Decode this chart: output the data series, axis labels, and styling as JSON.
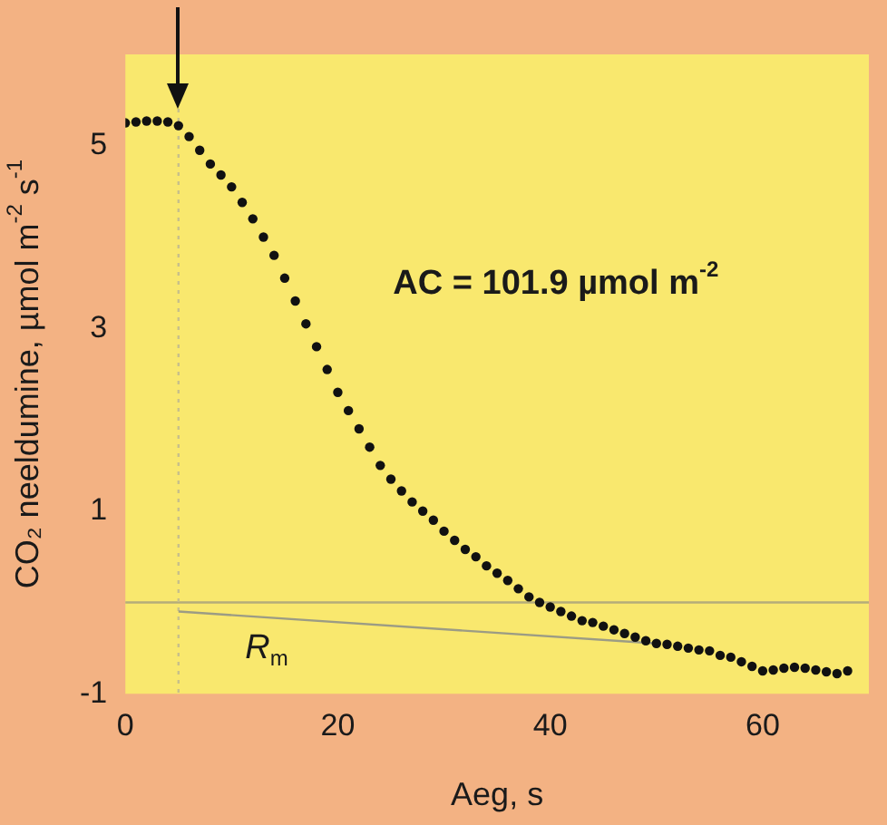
{
  "chart_data": {
    "type": "scatter",
    "xlabel": "Aeg, s",
    "ylabel": "CO₂ neeldumine, µmol m$^{-2}$ s$^{-1}$",
    "xlim": [
      0,
      70
    ],
    "ylim": [
      -1,
      6
    ],
    "xticks": [
      0,
      20,
      40,
      60
    ],
    "yticks": [
      -1,
      1,
      3,
      5
    ],
    "grid": false,
    "legend": false,
    "marker": "circle",
    "series": [
      {
        "color": "#111111",
        "x": [
          0,
          1,
          2,
          3,
          4,
          5,
          6,
          7,
          8,
          9,
          10,
          11,
          12,
          13,
          14,
          15,
          16,
          17,
          18,
          19,
          20,
          21,
          22,
          23,
          24,
          25,
          26,
          27,
          28,
          29,
          30,
          31,
          32,
          33,
          34,
          35,
          36,
          37,
          38,
          39,
          40,
          41,
          42,
          43,
          44,
          45,
          46,
          47,
          48,
          49,
          50,
          51,
          52,
          53,
          54,
          55,
          56,
          57,
          58,
          59,
          60,
          61,
          62,
          63,
          64,
          65,
          66,
          67,
          68
        ],
        "values": [
          5.25,
          5.26,
          5.27,
          5.27,
          5.26,
          5.22,
          5.1,
          4.95,
          4.8,
          4.68,
          4.55,
          4.38,
          4.2,
          4.0,
          3.8,
          3.55,
          3.3,
          3.05,
          2.8,
          2.55,
          2.3,
          2.1,
          1.9,
          1.7,
          1.5,
          1.35,
          1.22,
          1.1,
          1.0,
          0.9,
          0.78,
          0.68,
          0.58,
          0.5,
          0.4,
          0.32,
          0.24,
          0.15,
          0.06,
          0.0,
          -0.05,
          -0.1,
          -0.15,
          -0.2,
          -0.22,
          -0.26,
          -0.3,
          -0.34,
          -0.38,
          -0.42,
          -0.45,
          -0.46,
          -0.48,
          -0.5,
          -0.52,
          -0.53,
          -0.58,
          -0.6,
          -0.65,
          -0.7,
          -0.75,
          -0.74,
          -0.72,
          -0.71,
          -0.72,
          -0.74,
          -0.76,
          -0.78,
          -0.75
        ]
      },
      {
        "type": "line",
        "color": "#9c9c84",
        "line_style": "solid",
        "marker": "none",
        "x": [
          5,
          50
        ],
        "values": [
          -0.1,
          -0.45
        ]
      }
    ],
    "ref_lines": [
      {
        "axis": "y",
        "value": 0,
        "color": "#b5ad7a",
        "line_style": "solid"
      },
      {
        "axis": "x",
        "value": 5,
        "color": "#c8c08a",
        "line_style": "dotted"
      }
    ],
    "annotations": [
      "AC = 101.9 µmol m$^{-2}$",
      "R$_{m}$"
    ]
  }
}
